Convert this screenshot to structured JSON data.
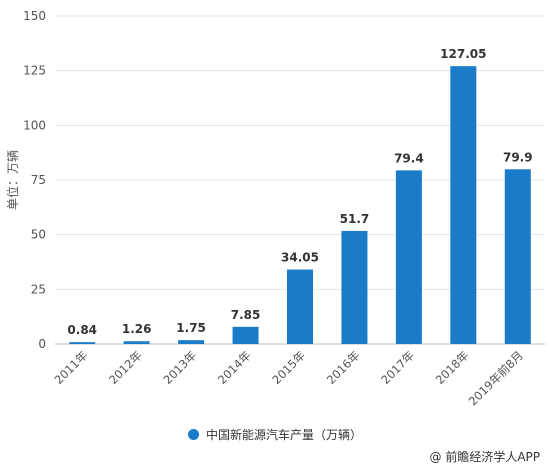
{
  "chart_data": {
    "type": "bar",
    "ylabel": "单位：万辆",
    "ylim": [
      0,
      150
    ],
    "yticks": [
      0,
      25,
      50,
      75,
      100,
      125,
      150
    ],
    "grid": true,
    "legend_position": "bottom-center",
    "categories": [
      "2011年",
      "2012年",
      "2013年",
      "2014年",
      "2015年",
      "2016年",
      "2017年",
      "2018年",
      "2019年前8月"
    ],
    "series": [
      {
        "name": "中国新能源汽车产量（万辆）",
        "values": [
          0.84,
          1.26,
          1.75,
          7.85,
          34.05,
          51.7,
          79.4,
          127.05,
          79.9
        ],
        "labels": [
          "0.84",
          "1.26",
          "1.75",
          "7.85",
          "34.05",
          "51.7",
          "79.4",
          "127.05",
          "79.9"
        ],
        "color": "#1a7bc8"
      }
    ]
  },
  "credit": "@ 前瞻经济学人APP"
}
